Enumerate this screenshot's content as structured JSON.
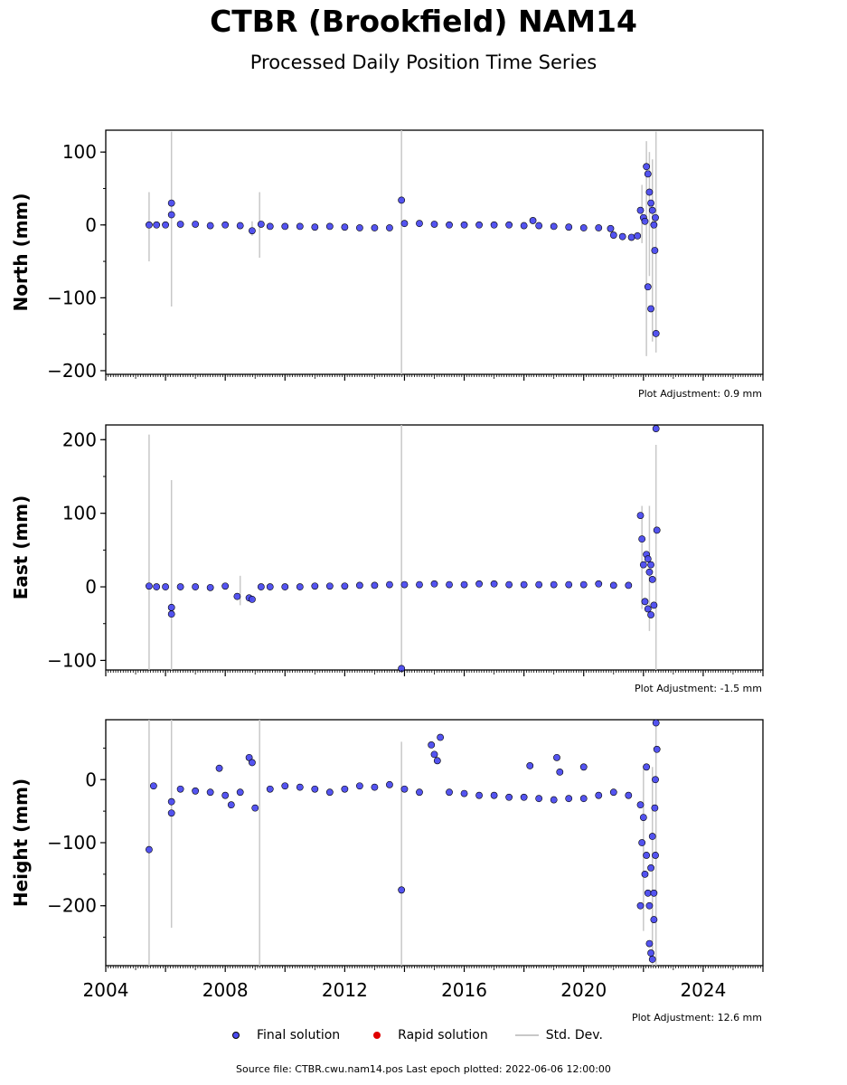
{
  "title": "CTBR (Brookfield) NAM14",
  "subtitle": "Processed Daily Position Time Series",
  "legend": {
    "final": "Final solution",
    "rapid": "Rapid solution",
    "std": "Std. Dev."
  },
  "source_text": "Source file: CTBR.cwu.nam14.pos  Last epoch plotted: 2022-06-06 12:00:00",
  "colors": {
    "final": "#4b4bef",
    "rapid": "#e00000",
    "std": "#c8c8c8",
    "outline": "#000000"
  },
  "chart_data": [
    {
      "type": "scatter",
      "ylabel": "North (mm)",
      "adjustment": "Plot Adjustment: 0.9 mm",
      "xlim": [
        2004,
        2026
      ],
      "ylim": [
        -205,
        130
      ],
      "yticks": [
        100,
        0,
        -100,
        -200
      ],
      "ytick_labels": [
        "100",
        "0",
        "−100",
        "−200"
      ],
      "series": [
        {
          "points": [
            [
              2005.45,
              0
            ],
            [
              2005.7,
              0
            ],
            [
              2006.0,
              0
            ],
            [
              2006.2,
              30
            ],
            [
              2006.2,
              14
            ],
            [
              2006.5,
              1
            ],
            [
              2007.0,
              1
            ],
            [
              2007.5,
              -1
            ],
            [
              2008.0,
              0
            ],
            [
              2008.5,
              -1
            ],
            [
              2008.9,
              -8
            ],
            [
              2009.2,
              1
            ],
            [
              2009.5,
              -2
            ],
            [
              2010.0,
              -2
            ],
            [
              2010.5,
              -2
            ],
            [
              2011.0,
              -3
            ],
            [
              2011.5,
              -2
            ],
            [
              2012.0,
              -3
            ],
            [
              2012.5,
              -4
            ],
            [
              2013.0,
              -4
            ],
            [
              2013.5,
              -4
            ],
            [
              2013.9,
              34
            ],
            [
              2014.0,
              2
            ],
            [
              2014.5,
              2
            ],
            [
              2015.0,
              1
            ],
            [
              2015.5,
              0
            ],
            [
              2016.0,
              0
            ],
            [
              2016.5,
              0
            ],
            [
              2017.0,
              0
            ],
            [
              2017.5,
              0
            ],
            [
              2018.0,
              -1
            ],
            [
              2018.3,
              6
            ],
            [
              2018.5,
              -1
            ],
            [
              2019.0,
              -2
            ],
            [
              2019.5,
              -3
            ],
            [
              2020.0,
              -4
            ],
            [
              2020.5,
              -4
            ],
            [
              2020.9,
              -5
            ],
            [
              2021.0,
              -14
            ],
            [
              2021.3,
              -16
            ],
            [
              2021.6,
              -17
            ],
            [
              2021.8,
              -15
            ],
            [
              2021.9,
              20
            ],
            [
              2022.0,
              10
            ],
            [
              2022.05,
              5
            ],
            [
              2022.1,
              80
            ],
            [
              2022.15,
              70
            ],
            [
              2022.2,
              45
            ],
            [
              2022.25,
              30
            ],
            [
              2022.3,
              20
            ],
            [
              2022.35,
              0
            ],
            [
              2022.4,
              10
            ],
            [
              2022.15,
              -85
            ],
            [
              2022.25,
              -115
            ],
            [
              2022.38,
              -35
            ],
            [
              2022.42,
              -149
            ]
          ]
        }
      ],
      "error_bars": [
        [
          2005.45,
          -50,
          45
        ],
        [
          2006.2,
          -112,
          128
        ],
        [
          2008.9,
          -15,
          5
        ],
        [
          2009.15,
          -45,
          45
        ],
        [
          2013.9,
          -205,
          130
        ],
        [
          2022.1,
          -180,
          115
        ],
        [
          2022.3,
          -160,
          90
        ],
        [
          2022.42,
          -175,
          128
        ],
        [
          2021.95,
          -25,
          55
        ],
        [
          2022.2,
          -70,
          100
        ]
      ]
    },
    {
      "type": "scatter",
      "ylabel": "East (mm)",
      "adjustment": "Plot Adjustment: -1.5 mm",
      "xlim": [
        2004,
        2026
      ],
      "ylim": [
        -113,
        220
      ],
      "yticks": [
        200,
        100,
        0,
        -100
      ],
      "ytick_labels": [
        "200",
        "100",
        "0",
        "−100"
      ],
      "series": [
        {
          "points": [
            [
              2005.45,
              1
            ],
            [
              2005.7,
              0
            ],
            [
              2006.0,
              0
            ],
            [
              2006.2,
              -28
            ],
            [
              2006.2,
              -37
            ],
            [
              2006.5,
              0
            ],
            [
              2007.0,
              0
            ],
            [
              2007.5,
              -1
            ],
            [
              2008.0,
              1
            ],
            [
              2008.4,
              -13
            ],
            [
              2008.8,
              -15
            ],
            [
              2008.9,
              -17
            ],
            [
              2009.2,
              0
            ],
            [
              2009.5,
              0
            ],
            [
              2010.0,
              0
            ],
            [
              2010.5,
              0
            ],
            [
              2011.0,
              1
            ],
            [
              2011.5,
              1
            ],
            [
              2012.0,
              1
            ],
            [
              2012.5,
              2
            ],
            [
              2013.0,
              2
            ],
            [
              2013.5,
              3
            ],
            [
              2013.9,
              -111
            ],
            [
              2014.0,
              3
            ],
            [
              2014.5,
              3
            ],
            [
              2015.0,
              4
            ],
            [
              2015.5,
              3
            ],
            [
              2016.0,
              3
            ],
            [
              2016.5,
              4
            ],
            [
              2017.0,
              4
            ],
            [
              2017.5,
              3
            ],
            [
              2018.0,
              3
            ],
            [
              2018.5,
              3
            ],
            [
              2019.0,
              3
            ],
            [
              2019.5,
              3
            ],
            [
              2020.0,
              3
            ],
            [
              2020.5,
              4
            ],
            [
              2021.0,
              2
            ],
            [
              2021.5,
              2
            ],
            [
              2021.9,
              97
            ],
            [
              2021.95,
              65
            ],
            [
              2022.0,
              30
            ],
            [
              2022.1,
              44
            ],
            [
              2022.15,
              38
            ],
            [
              2022.2,
              20
            ],
            [
              2022.25,
              30
            ],
            [
              2022.3,
              10
            ],
            [
              2022.05,
              -20
            ],
            [
              2022.15,
              -30
            ],
            [
              2022.25,
              -38
            ],
            [
              2022.35,
              -25
            ],
            [
              2022.42,
              215
            ],
            [
              2022.45,
              77
            ]
          ]
        }
      ],
      "error_bars": [
        [
          2005.45,
          -113,
          207
        ],
        [
          2006.2,
          -113,
          145
        ],
        [
          2013.9,
          -113,
          220
        ],
        [
          2022.42,
          -113,
          193
        ],
        [
          2022.2,
          -60,
          110
        ],
        [
          2021.95,
          -30,
          110
        ],
        [
          2008.5,
          -25,
          15
        ]
      ]
    },
    {
      "type": "scatter",
      "ylabel": "Height (mm)",
      "adjustment": "Plot Adjustment: 12.6 mm",
      "xlim": [
        2004,
        2026
      ],
      "ylim": [
        -295,
        95
      ],
      "yticks": [
        0,
        -100,
        -200
      ],
      "ytick_labels": [
        "0",
        "−100",
        "−200"
      ],
      "xticks": [
        2004,
        2008,
        2012,
        2016,
        2020,
        2024
      ],
      "series": [
        {
          "points": [
            [
              2005.45,
              -111
            ],
            [
              2005.6,
              -10
            ],
            [
              2006.2,
              -35
            ],
            [
              2006.2,
              -53
            ],
            [
              2006.5,
              -15
            ],
            [
              2007.0,
              -18
            ],
            [
              2007.5,
              -20
            ],
            [
              2007.8,
              18
            ],
            [
              2008.0,
              -25
            ],
            [
              2008.2,
              -40
            ],
            [
              2008.5,
              -20
            ],
            [
              2008.8,
              35
            ],
            [
              2008.9,
              27
            ],
            [
              2009.0,
              -45
            ],
            [
              2009.5,
              -15
            ],
            [
              2010.0,
              -10
            ],
            [
              2010.5,
              -12
            ],
            [
              2011.0,
              -15
            ],
            [
              2011.5,
              -20
            ],
            [
              2012.0,
              -15
            ],
            [
              2012.5,
              -10
            ],
            [
              2013.0,
              -12
            ],
            [
              2013.5,
              -8
            ],
            [
              2013.9,
              -175
            ],
            [
              2014.0,
              -15
            ],
            [
              2014.5,
              -20
            ],
            [
              2014.9,
              55
            ],
            [
              2015.0,
              40
            ],
            [
              2015.2,
              67
            ],
            [
              2015.1,
              30
            ],
            [
              2015.5,
              -20
            ],
            [
              2016.0,
              -22
            ],
            [
              2016.5,
              -25
            ],
            [
              2017.0,
              -25
            ],
            [
              2017.5,
              -28
            ],
            [
              2018.0,
              -28
            ],
            [
              2018.2,
              22
            ],
            [
              2018.5,
              -30
            ],
            [
              2019.0,
              -32
            ],
            [
              2019.1,
              35
            ],
            [
              2019.2,
              12
            ],
            [
              2019.5,
              -30
            ],
            [
              2020.0,
              -30
            ],
            [
              2020.0,
              20
            ],
            [
              2020.5,
              -25
            ],
            [
              2021.0,
              -20
            ],
            [
              2021.5,
              -25
            ],
            [
              2021.9,
              -40
            ],
            [
              2021.9,
              -200
            ],
            [
              2021.95,
              -100
            ],
            [
              2022.0,
              -60
            ],
            [
              2022.05,
              -150
            ],
            [
              2022.1,
              -120
            ],
            [
              2022.15,
              -180
            ],
            [
              2022.2,
              -200
            ],
            [
              2022.25,
              -140
            ],
            [
              2022.3,
              -90
            ],
            [
              2022.35,
              -180
            ],
            [
              2022.4,
              -120
            ],
            [
              2022.1,
              20
            ],
            [
              2022.2,
              -260
            ],
            [
              2022.25,
              -275
            ],
            [
              2022.3,
              -285
            ],
            [
              2022.35,
              -222
            ],
            [
              2022.4,
              0
            ],
            [
              2022.42,
              90
            ],
            [
              2022.45,
              48
            ],
            [
              2022.38,
              -45
            ]
          ]
        }
      ],
      "error_bars": [
        [
          2005.45,
          -295,
          95
        ],
        [
          2006.2,
          -235,
          95
        ],
        [
          2009.15,
          -295,
          95
        ],
        [
          2013.9,
          -295,
          60
        ],
        [
          2022.42,
          -295,
          95
        ],
        [
          2022.0,
          -240,
          20
        ],
        [
          2022.3,
          -295,
          20
        ]
      ]
    }
  ]
}
